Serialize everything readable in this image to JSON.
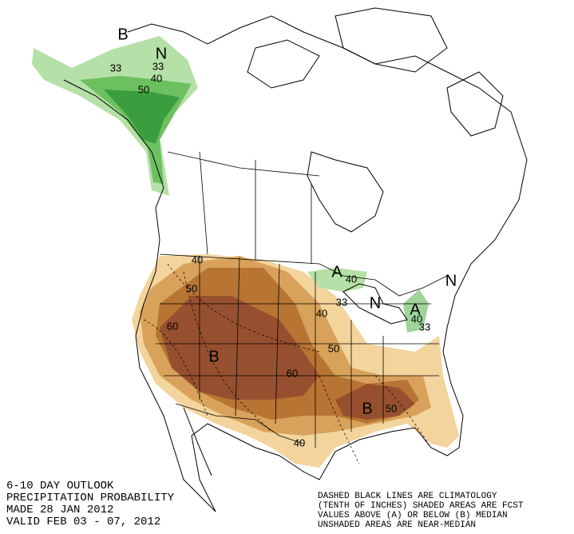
{
  "header": {
    "lines": [
      "6-10 DAY OUTLOOK",
      "PRECIPITATION PROBABILITY",
      "MADE  28 JAN 2012",
      "VALID  FEB 03 - 07, 2012"
    ]
  },
  "legend_note": {
    "lines": [
      "DASHED BLACK LINES ARE CLIMATOLOGY",
      "(TENTH OF INCHES) SHADED AREAS ARE FCST",
      "VALUES ABOVE (A) OR BELOW (B) MEDIAN",
      "UNSHADED AREAS ARE NEAR-MEDIAN"
    ]
  },
  "map_labels": [
    "B",
    "N",
    "33",
    "33",
    "40",
    "50",
    "40",
    "50",
    "60",
    "B",
    "60",
    "50",
    "40",
    "A",
    "40",
    "33",
    "N",
    "A",
    "40",
    "33",
    "N",
    "B",
    "50",
    "40"
  ]
}
